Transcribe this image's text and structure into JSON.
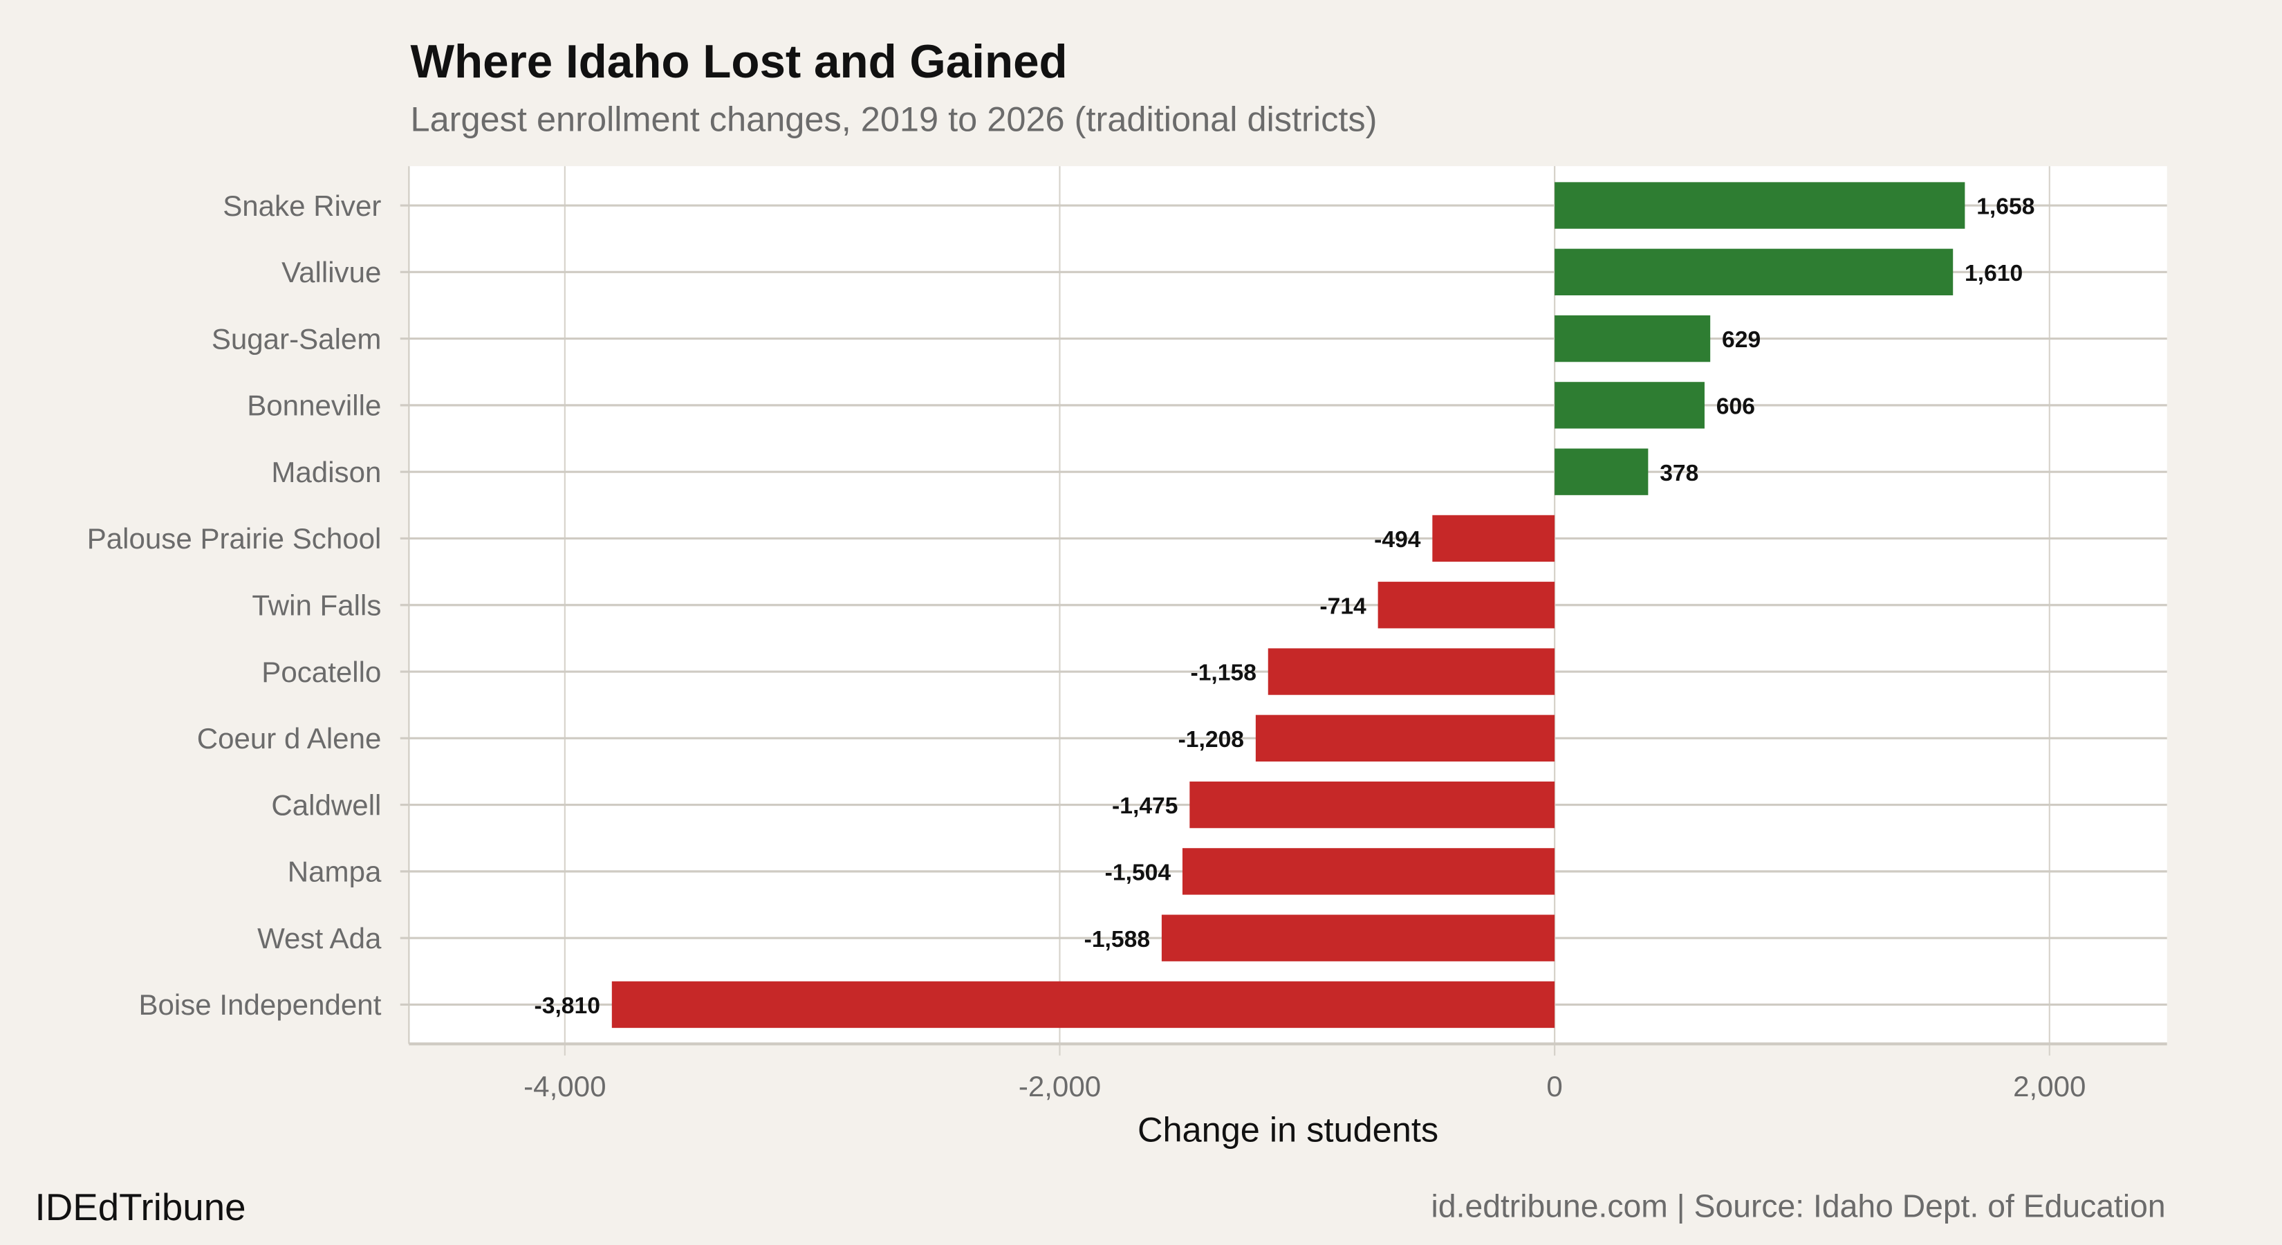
{
  "chart_data": {
    "type": "bar",
    "orientation": "horizontal",
    "title": "Where Idaho Lost and Gained",
    "subtitle": "Largest enrollment changes, 2019 to 2026 (traditional districts)",
    "xlabel": "Change in students",
    "ylabel": "",
    "xlim": [
      -4630,
      2475
    ],
    "xticks": [
      -4000,
      -2000,
      0,
      2000
    ],
    "xtick_labels": [
      "-4,000",
      "-2,000",
      "0",
      "2,000"
    ],
    "grid": true,
    "categories": [
      "Snake River",
      "Vallivue",
      "Sugar-Salem",
      "Bonneville",
      "Madison",
      "Palouse Prairie School",
      "Twin Falls",
      "Pocatello",
      "Coeur d Alene",
      "Caldwell",
      "Nampa",
      "West Ada",
      "Boise Independent"
    ],
    "values": [
      1658,
      1610,
      629,
      606,
      378,
      -494,
      -714,
      -1158,
      -1208,
      -1475,
      -1504,
      -1588,
      -3810
    ],
    "value_labels": [
      "1,658",
      "1,610",
      "629",
      "606",
      "378",
      "-494",
      "-714",
      "-1,158",
      "-1,208",
      "-1,475",
      "-1,504",
      "-1,588",
      "-3,810"
    ],
    "colors": {
      "gain": "#2e7d32",
      "loss": "#c62828",
      "background": "#f4f1ec",
      "panel": "#ffffff",
      "grid": "#cfcbc3"
    }
  },
  "footer": {
    "brand": "IDEdTribune",
    "source": "id.edtribune.com | Source: Idaho Dept. of Education"
  }
}
